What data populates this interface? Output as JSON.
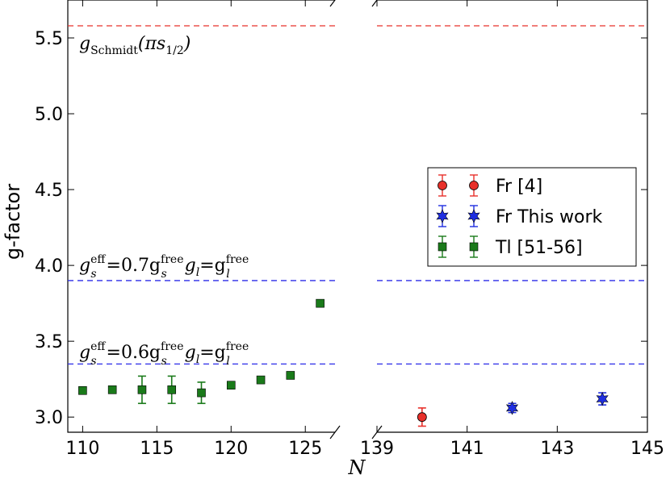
{
  "chart_data": {
    "type": "scatter",
    "ylabel": "g-factor",
    "xlabel": "N",
    "ylim": [
      2.9,
      5.75
    ],
    "yticks": [
      3.0,
      3.5,
      4.0,
      4.5,
      5.0,
      5.5
    ],
    "ytick_labels": [
      "3.0",
      "3.5",
      "4.0",
      "4.5",
      "5.0",
      "5.5"
    ],
    "panels": [
      {
        "xlim": [
          109,
          127
        ],
        "xticks": [
          110,
          115,
          120,
          125
        ],
        "xtick_labels": [
          "110",
          "115",
          "120",
          "125"
        ]
      },
      {
        "xlim": [
          139,
          145
        ],
        "xticks": [
          139,
          141,
          143,
          145
        ],
        "xtick_labels": [
          "139",
          "141",
          "143",
          "145"
        ]
      }
    ],
    "reference_lines": [
      {
        "y": 5.58,
        "color": "#e8302a",
        "label": "g_Schmidt(πs1/2)"
      },
      {
        "y": 3.9,
        "color": "#2a2ae8",
        "label": "g_s^eff=0.7g_s^free g_l=g_l^free"
      },
      {
        "y": 3.35,
        "color": "#2a2ae8",
        "label": "g_s^eff=0.6g_s^free g_l=g_l^free"
      }
    ],
    "series": [
      {
        "name": "Fr [4]",
        "marker": "circle",
        "color": "#e8302a",
        "points": [
          {
            "x": 140,
            "y": 3.0,
            "err": 0.06
          }
        ]
      },
      {
        "name": "Fr This work",
        "marker": "star",
        "color": "#1f2ee0",
        "points": [
          {
            "x": 142,
            "y": 3.06,
            "err": 0.03
          },
          {
            "x": 144,
            "y": 3.12,
            "err": 0.04
          }
        ]
      },
      {
        "name": "Tl [51-56]",
        "marker": "square",
        "color": "#1a7a1a",
        "points": [
          {
            "x": 110,
            "y": 3.175,
            "err": 0
          },
          {
            "x": 112,
            "y": 3.18,
            "err": 0
          },
          {
            "x": 114,
            "y": 3.18,
            "err": 0.09
          },
          {
            "x": 116,
            "y": 3.18,
            "err": 0.09
          },
          {
            "x": 118,
            "y": 3.16,
            "err": 0.07
          },
          {
            "x": 120,
            "y": 3.21,
            "err": 0
          },
          {
            "x": 122,
            "y": 3.245,
            "err": 0
          },
          {
            "x": 124,
            "y": 3.275,
            "err": 0
          },
          {
            "x": 126,
            "y": 3.75,
            "err": 0
          }
        ]
      }
    ],
    "legend": {
      "position": "center-right",
      "entries": [
        "Fr [4]",
        "Fr This work",
        "Tl [51-56]"
      ]
    }
  }
}
